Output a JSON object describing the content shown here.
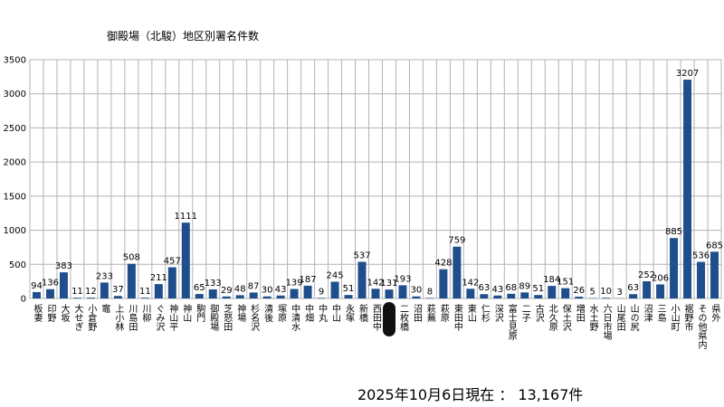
{
  "chart_data": {
    "type": "bar",
    "title": "御殿場（北駿）地区別署名件数",
    "footer": "2025年10月6日現在 ： 13,167件",
    "categories": [
      "板妻",
      "印野",
      "大坂",
      "大せぎ",
      "小倉野",
      "竈",
      "上小林",
      "川島田",
      "川柳",
      "ぐみ沢",
      "神山平",
      "神山",
      "駒門",
      "御殿場",
      "芝怒田",
      "神場",
      "杉名沢",
      "清後",
      "塚原",
      "中清水",
      "中畑",
      "中丸",
      "中山",
      "永塚",
      "新橋",
      "西田中",
      null,
      "二枚橋",
      "沼田",
      "萩蕪",
      "萩原",
      "東田中",
      "東山",
      "仁杉",
      "深沢",
      "富士見原",
      "二子",
      "古沢",
      "北久原",
      "保土沢",
      "増田",
      "水土野",
      "六日市場",
      "山尾田",
      "山の尻",
      "沼津",
      "三島",
      "小山町",
      "裾野市",
      "その他県内",
      "県外"
    ],
    "values": [
      94,
      136,
      383,
      11,
      12,
      233,
      37,
      508,
      11,
      211,
      457,
      1111,
      65,
      133,
      29,
      48,
      87,
      30,
      43,
      139,
      187,
      9,
      245,
      51,
      537,
      142,
      131,
      193,
      30,
      8,
      428,
      759,
      142,
      63,
      43,
      68,
      89,
      51,
      184,
      151,
      26,
      5,
      10,
      3,
      63,
      252,
      206,
      885,
      3207,
      536,
      685
    ],
    "color": "#1f4e8c",
    "ylim": [
      0,
      3500
    ],
    "yticks": [
      0,
      500,
      1000,
      1500,
      2000,
      2500,
      3000,
      3500
    ],
    "grid": true
  }
}
